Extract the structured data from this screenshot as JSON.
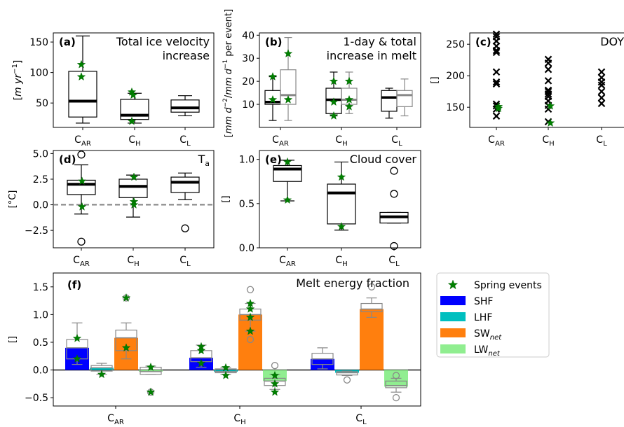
{
  "chart_data": [
    {
      "id": "a",
      "type": "box",
      "panel_label": "(a)",
      "title_lines": [
        "Total ice velocity",
        "increase"
      ],
      "ylabel_parts": [
        "[",
        "m yr",
        "−1",
        "]"
      ],
      "categories": [
        {
          "base": "C",
          "sub": "AR"
        },
        {
          "base": "C",
          "sub": "H"
        },
        {
          "base": "C",
          "sub": "L"
        }
      ],
      "ylim": [
        10,
        165
      ],
      "yticks": [
        50,
        100,
        150
      ],
      "boxes": [
        {
          "q1": 27,
          "median": 53,
          "q3": 102,
          "whislo": 17,
          "whishi": 160
        },
        {
          "q1": 23,
          "median": 30,
          "q3": 56,
          "whislo": 17,
          "whishi": 66
        },
        {
          "q1": 35,
          "median": 42,
          "q3": 55,
          "whislo": 29,
          "whishi": 62
        }
      ],
      "fliers": [
        [],
        [],
        []
      ],
      "spring_events": [
        [
          113,
          93
        ],
        [
          68,
          63,
          20
        ],
        []
      ]
    },
    {
      "id": "b",
      "type": "box",
      "panel_label": "(b)",
      "title_lines": [
        "1-day & total",
        "increase in melt"
      ],
      "ylabel_parts": [
        "[",
        "mm d",
        "−2",
        "/",
        "mm d",
        "−1",
        " per event]"
      ],
      "categories": [
        {
          "base": "C",
          "sub": "AR"
        },
        {
          "base": "C",
          "sub": "H"
        },
        {
          "base": "C",
          "sub": "L"
        }
      ],
      "ylim": [
        0,
        41
      ],
      "yticks": [
        10,
        20,
        30,
        40
      ],
      "box_pairs": [
        [
          {
            "q1": 10,
            "median": 11,
            "q3": 16,
            "whislo": 3,
            "whishi": 22
          },
          {
            "q1": 10,
            "median": 14,
            "q3": 25,
            "whislo": 3,
            "whishi": 39
          }
        ],
        [
          {
            "q1": 6,
            "median": 12,
            "q3": 17,
            "whislo": 5,
            "whishi": 24
          },
          {
            "q1": 10,
            "median": 12,
            "q3": 17,
            "whislo": 6,
            "whishi": 24
          }
        ],
        [
          {
            "q1": 7,
            "median": 13,
            "q3": 16,
            "whislo": 4,
            "whishi": 17
          },
          {
            "q1": 9,
            "median": 14,
            "q3": 16,
            "whislo": 5,
            "whishi": 21
          }
        ]
      ],
      "spring_events": [
        [
          22,
          12
        ],
        [
          32,
          12
        ],
        [
          20,
          11,
          5
        ],
        [
          20,
          12,
          9
        ],
        [],
        []
      ]
    },
    {
      "id": "c",
      "type": "scatter",
      "panel_label": "(c)",
      "title_lines": [
        "DOY"
      ],
      "ylabel": "[]",
      "categories": [
        {
          "base": "C",
          "sub": "AR"
        },
        {
          "base": "C",
          "sub": "H"
        },
        {
          "base": "C",
          "sub": "L"
        }
      ],
      "ylim": [
        118,
        268
      ],
      "yticks": [
        150,
        200,
        250
      ],
      "points": [
        [
          266,
          262,
          255,
          247,
          240,
          237,
          206,
          190,
          187,
          155,
          152,
          147,
          136
        ],
        [
          226,
          220,
          210,
          192,
          177,
          175,
          171,
          167,
          160,
          153,
          147,
          127
        ],
        [
          206,
          197,
          190,
          185,
          175,
          165,
          156
        ]
      ],
      "spring_events": [
        [
          151,
          148
        ],
        [
          152,
          125
        ],
        []
      ]
    },
    {
      "id": "d",
      "type": "box",
      "panel_label": "(d)",
      "title_lines": [
        ""
      ],
      "title_main": "T",
      "title_sub": "a",
      "ylabel": "[°C]",
      "categories": [
        {
          "base": "C",
          "sub": "AR"
        },
        {
          "base": "C",
          "sub": "H"
        },
        {
          "base": "C",
          "sub": "L"
        }
      ],
      "ylim": [
        -4.2,
        5.3
      ],
      "yticks": [
        -2.5,
        0.0,
        2.5,
        5.0
      ],
      "ytick_labels": [
        "−2.5",
        "0.0",
        "2.5",
        "5.0"
      ],
      "zero_line": true,
      "boxes": [
        {
          "q1": 1.0,
          "median": 2.0,
          "q3": 2.4,
          "whislo": -0.9,
          "whishi": 3.9
        },
        {
          "q1": 0.7,
          "median": 1.8,
          "q3": 2.5,
          "whislo": -1.2,
          "whishi": 2.9
        },
        {
          "q1": 1.2,
          "median": 2.2,
          "q3": 2.7,
          "whislo": 0.5,
          "whishi": 3.1
        }
      ],
      "fliers": [
        [
          4.9,
          -3.6
        ],
        [],
        [
          -2.3
        ]
      ],
      "spring_events": [
        [
          2.3,
          -0.2
        ],
        [
          2.7,
          0.3,
          0.0
        ],
        []
      ]
    },
    {
      "id": "e",
      "type": "box",
      "panel_label": "(e)",
      "title_lines": [
        "Cloud cover"
      ],
      "ylabel": "[]",
      "categories": [
        {
          "base": "C",
          "sub": "AR"
        },
        {
          "base": "C",
          "sub": "H"
        },
        {
          "base": "C",
          "sub": "L"
        }
      ],
      "ylim": [
        0,
        1.1
      ],
      "yticks": [
        0.0,
        0.5,
        1.0
      ],
      "ytick_labels": [
        "0.0",
        "0.5",
        "1.0"
      ],
      "boxes": [
        {
          "q1": 0.75,
          "median": 0.89,
          "q3": 0.93,
          "whislo": 0.53,
          "whishi": 0.99
        },
        {
          "q1": 0.27,
          "median": 0.62,
          "q3": 0.72,
          "whislo": 0.2,
          "whishi": 0.97
        },
        {
          "q1": 0.28,
          "median": 0.35,
          "q3": 0.4,
          "whislo": 0.28,
          "whishi": 0.4
        }
      ],
      "fliers": [
        [],
        [],
        [
          0.87,
          0.61,
          0.02
        ]
      ],
      "spring_events": [
        [
          0.97,
          0.54
        ],
        [
          0.8,
          0.24
        ],
        []
      ]
    },
    {
      "id": "f",
      "type": "bar+box",
      "panel_label": "(f)",
      "title_lines": [
        "Melt energy fraction"
      ],
      "ylabel": "[]",
      "categories": [
        {
          "base": "C",
          "sub": "AR"
        },
        {
          "base": "C",
          "sub": "H"
        },
        {
          "base": "C",
          "sub": "L"
        }
      ],
      "ylim": [
        -0.65,
        1.75
      ],
      "yticks": [
        -0.5,
        0.0,
        0.5,
        1.0,
        1.5
      ],
      "ytick_labels": [
        "−0.5",
        "0.0",
        "0.5",
        "1.0",
        "1.5"
      ],
      "series": [
        {
          "name": "SHF",
          "color": "#0000ff",
          "values": [
            0.4,
            0.22,
            0.2
          ]
        },
        {
          "name": "LHF",
          "color": "#00bfbf",
          "values": [
            0.04,
            -0.03,
            -0.05
          ]
        },
        {
          "name": "SW_net",
          "color": "#ff7f0e",
          "values": [
            0.58,
            1.0,
            1.1
          ]
        },
        {
          "name": "LW_net",
          "color": "#90ee90",
          "values": [
            -0.03,
            -0.2,
            -0.3
          ]
        }
      ],
      "boxes": [
        [
          {
            "q1": 0.2,
            "median": 0.4,
            "q3": 0.55,
            "whislo": 0.1,
            "whishi": 0.85
          },
          {
            "q1": -0.02,
            "median": 0.04,
            "q3": 0.08,
            "whislo": -0.08,
            "whishi": 0.12
          },
          {
            "q1": 0.35,
            "median": 0.58,
            "q3": 0.72,
            "whislo": 0.2,
            "whishi": 0.85
          },
          {
            "q1": -0.08,
            "median": -0.03,
            "q3": 0.05,
            "whislo": -0.08,
            "whishi": 0.07
          }
        ],
        [
          {
            "q1": 0.15,
            "median": 0.22,
            "q3": 0.35,
            "whislo": 0.05,
            "whishi": 0.45
          },
          {
            "q1": -0.05,
            "median": -0.03,
            "q3": 0.02,
            "whislo": -0.08,
            "whishi": 0.05
          },
          {
            "q1": 0.9,
            "median": 1.0,
            "q3": 1.1,
            "whislo": 0.7,
            "whishi": 1.2
          },
          {
            "q1": -0.28,
            "median": -0.2,
            "q3": -0.15,
            "whislo": -0.35,
            "whishi": -0.08
          }
        ],
        [
          {
            "q1": 0.1,
            "median": 0.2,
            "q3": 0.3,
            "whislo": 0.02,
            "whishi": 0.4
          },
          {
            "q1": -0.09,
            "median": -0.05,
            "q3": -0.03,
            "whislo": -0.1,
            "whishi": -0.02
          },
          {
            "q1": 1.05,
            "median": 1.1,
            "q3": 1.2,
            "whislo": 0.95,
            "whishi": 1.3
          },
          {
            "q1": -0.32,
            "median": -0.28,
            "q3": -0.2,
            "whislo": -0.4,
            "whishi": -0.15
          }
        ]
      ],
      "fliers": [
        [
          [],
          [],
          [
            1.3
          ],
          [
            -0.4
          ]
        ],
        [
          [],
          [],
          [
            1.45,
            0.55
          ],
          [
            0.08
          ]
        ],
        [
          [],
          [
            -0.18
          ],
          [
            1.5
          ],
          [
            -0.1,
            -0.5
          ]
        ]
      ],
      "spring_events": [
        [
          [
            0.57,
            0.2
          ],
          [
            -0.08
          ],
          [
            1.3,
            0.4
          ],
          [
            0.05,
            -0.4
          ]
        ],
        [
          [
            0.42,
            0.35,
            0.12
          ],
          [
            0.04,
            -0.1
          ],
          [
            1.2,
            1.1,
            0.95,
            0.7
          ],
          [
            -0.1,
            -0.25,
            -0.4
          ]
        ],
        [
          [],
          [],
          [],
          []
        ]
      ]
    }
  ],
  "legend": {
    "items": [
      {
        "label": "Spring events",
        "label_sub": "",
        "kind": "star",
        "color": "#008000"
      },
      {
        "label": "SHF",
        "label_sub": "",
        "kind": "patch",
        "color": "#0000ff"
      },
      {
        "label": "LHF",
        "label_sub": "",
        "kind": "patch",
        "color": "#00bfbf"
      },
      {
        "label": "SW",
        "label_sub": "net",
        "kind": "patch",
        "color": "#ff7f0e"
      },
      {
        "label": "LW",
        "label_sub": "net",
        "kind": "patch",
        "color": "#90ee90"
      }
    ]
  }
}
